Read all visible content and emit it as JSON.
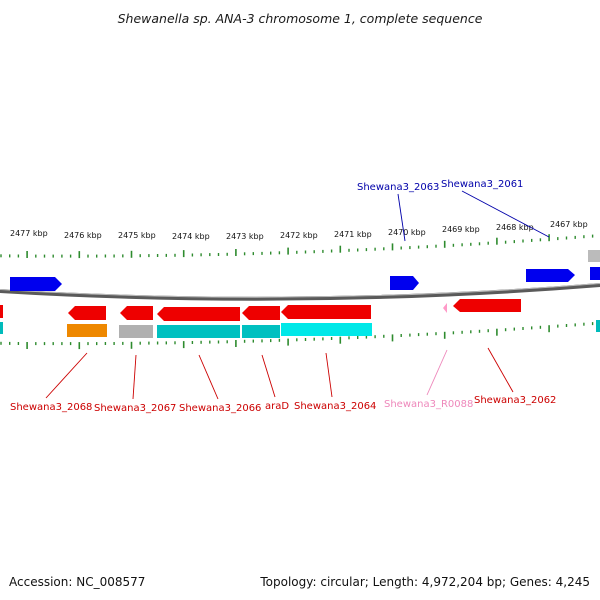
{
  "title": "Shewanella sp. ANA-3 chromosome 1, complete sequence",
  "footer": {
    "accession": "Accession: NC_008577",
    "stats": "Topology: circular; Length: 4,972,204 bp; Genes: 4,245"
  },
  "colors": {
    "forward_gene": "#0000ee",
    "reverse_gene": "#ee0000",
    "rna": "#ff9ac8",
    "backbone": "#888888",
    "ticks": "#2e8b2e",
    "label_forward": "#0000aa",
    "label_reverse": "#cc0000",
    "label_rna": "#ee88bb"
  },
  "scale": {
    "tick_labels": [
      "2477 kbp",
      "2476 kbp",
      "2475 kbp",
      "2474 kbp",
      "2473 kbp",
      "2472 kbp",
      "2471 kbp",
      "2470 kbp",
      "2469 kbp",
      "2468 kbp",
      "2467 kbp"
    ]
  },
  "gene_labels": {
    "forward": [
      "Shewana3_2063",
      "Shewana3_2061"
    ],
    "reverse": [
      "Shewana3_2068",
      "Shewana3_2067",
      "Shewana3_2066",
      "araD",
      "Shewana3_2064",
      "Shewana3_R0088",
      "Shewana3_2062"
    ]
  }
}
